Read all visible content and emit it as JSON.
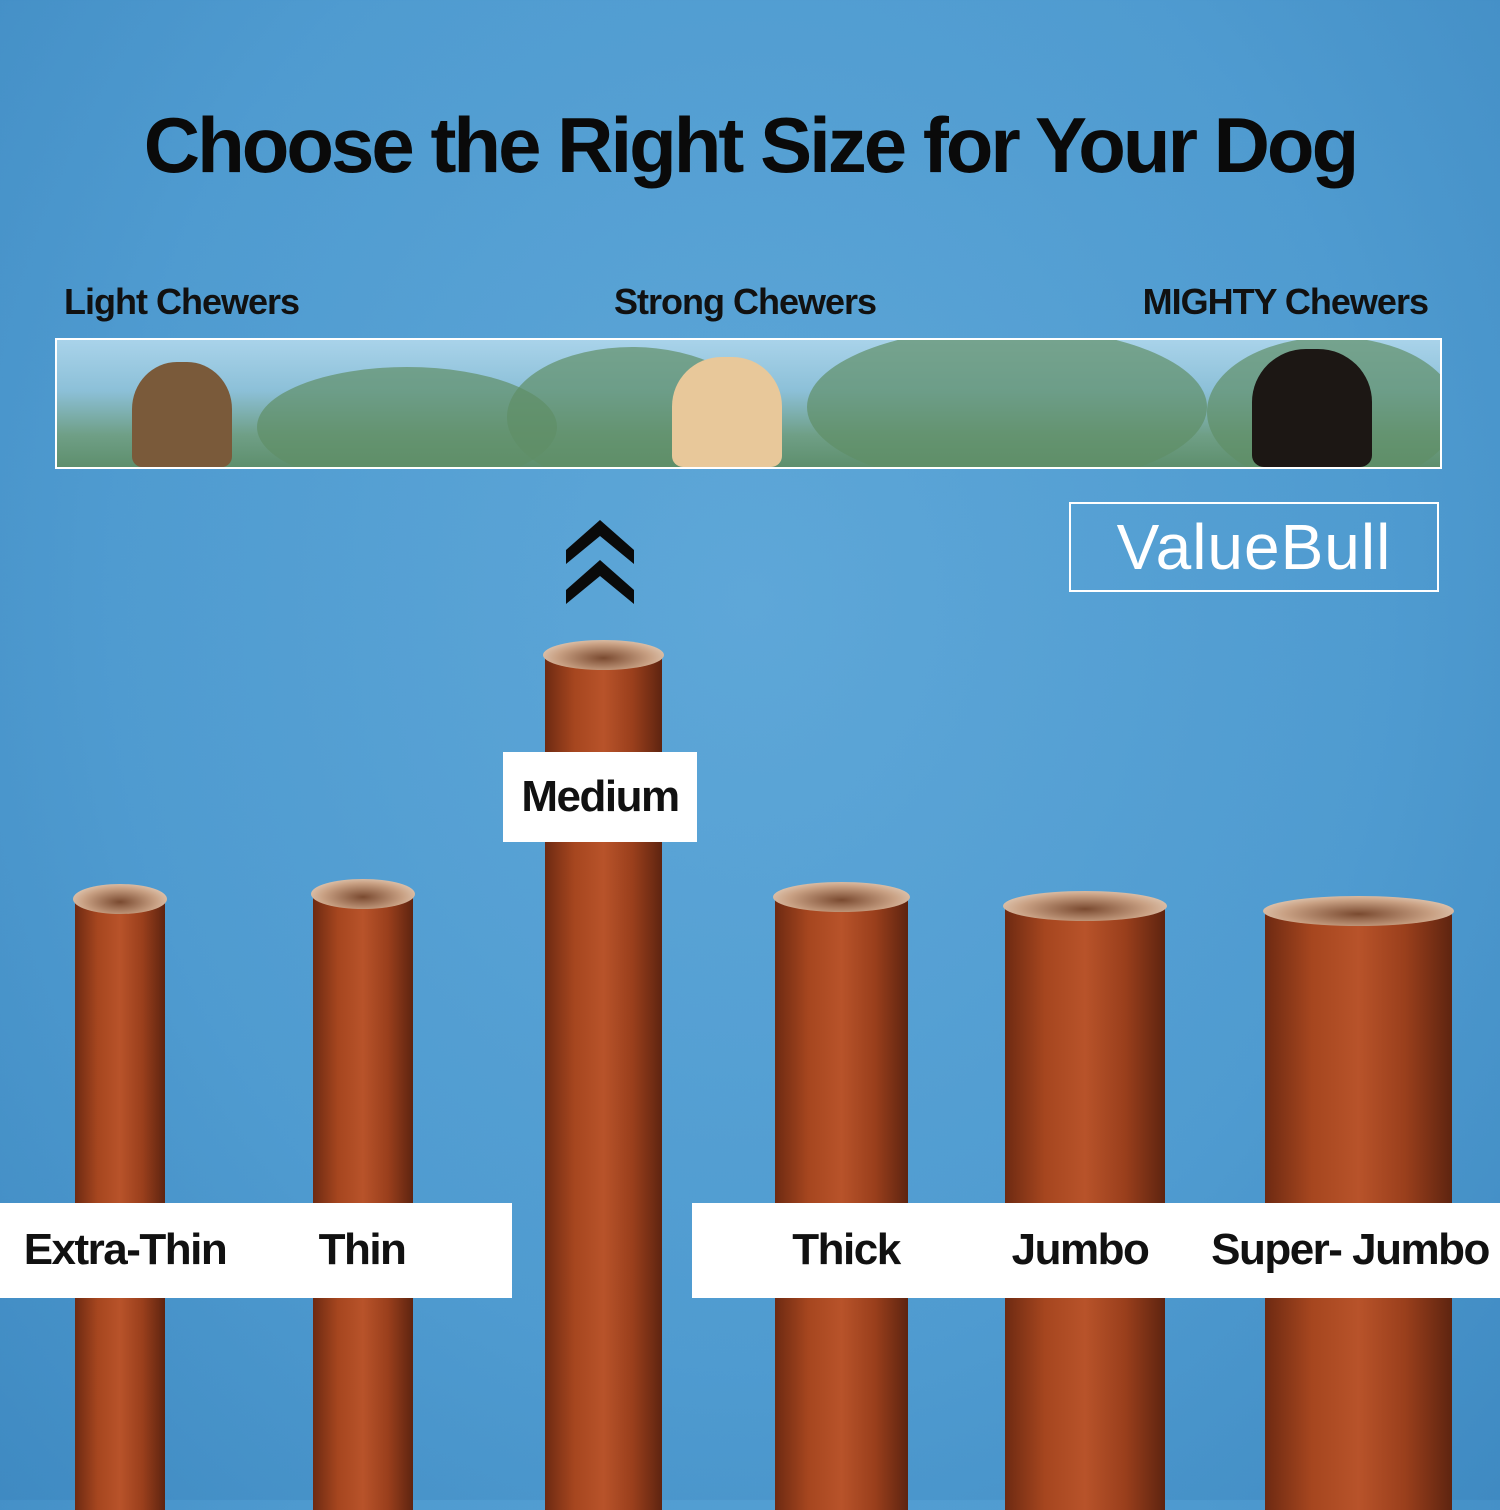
{
  "title": "Choose the Right Size for Your Dog",
  "chewer_levels": [
    "Light Chewers",
    "Strong Chewers",
    "MIGHTY Chewers"
  ],
  "logo": "ValueBull",
  "highlight_icon": "double-chevron-up-icon",
  "sizes": [
    "Extra-Thin",
    "Thin",
    "Medium",
    "Thick",
    "Jumbo",
    "Super- Jumbo"
  ],
  "highlighted_size": "Medium",
  "colors": {
    "background": "#4f9bd0",
    "stick": "#a6461f",
    "text": "#111111"
  }
}
